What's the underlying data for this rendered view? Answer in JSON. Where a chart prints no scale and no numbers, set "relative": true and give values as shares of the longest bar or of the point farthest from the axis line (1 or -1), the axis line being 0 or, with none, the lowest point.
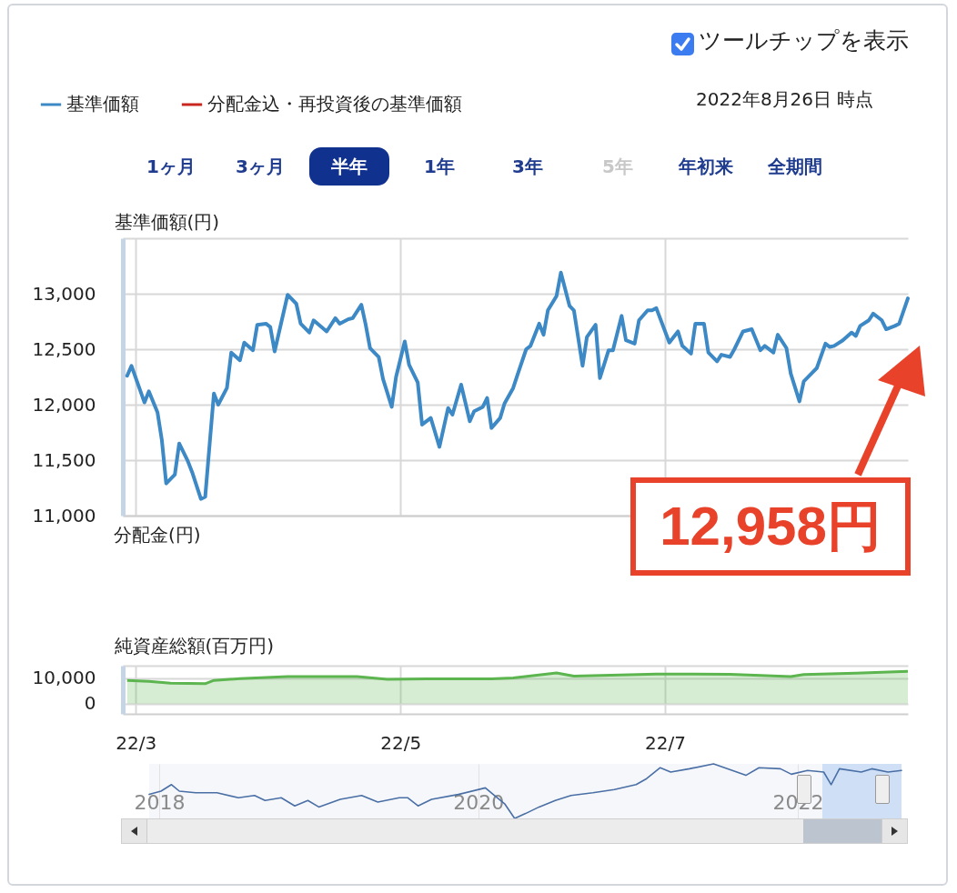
{
  "chart_data": [
    {
      "type": "line",
      "ylabel": "基準価額(円)",
      "x": [
        "2022-02-27",
        "2022-02-28",
        "2022-03-03",
        "2022-03-04",
        "2022-03-06",
        "2022-03-07",
        "2022-03-08",
        "2022-03-10",
        "2022-03-11",
        "2022-03-13",
        "2022-03-14",
        "2022-03-16",
        "2022-03-17",
        "2022-03-19",
        "2022-03-20",
        "2022-03-22",
        "2022-03-23",
        "2022-03-25",
        "2022-03-26",
        "2022-03-28",
        "2022-03-29",
        "2022-03-31",
        "2022-04-01",
        "2022-04-02",
        "2022-04-05",
        "2022-04-07",
        "2022-04-08",
        "2022-04-10",
        "2022-04-11",
        "2022-04-14",
        "2022-04-16",
        "2022-04-17",
        "2022-04-19",
        "2022-04-20",
        "2022-04-22",
        "2022-04-23",
        "2022-04-24",
        "2022-04-26",
        "2022-04-27",
        "2022-04-29",
        "2022-04-30",
        "2022-05-02",
        "2022-05-03",
        "2022-05-05",
        "2022-05-06",
        "2022-05-08",
        "2022-05-09",
        "2022-05-10",
        "2022-05-12",
        "2022-05-13",
        "2022-05-15",
        "2022-05-17",
        "2022-05-18",
        "2022-05-20",
        "2022-05-21",
        "2022-05-22",
        "2022-05-24",
        "2022-05-25",
        "2022-05-27",
        "2022-05-28",
        "2022-05-30",
        "2022-05-31",
        "2022-06-02",
        "2022-06-03",
        "2022-06-04",
        "2022-06-06",
        "2022-06-07",
        "2022-06-09",
        "2022-06-10",
        "2022-06-12",
        "2022-06-13",
        "2022-06-15",
        "2022-06-16",
        "2022-06-18",
        "2022-06-19",
        "2022-06-21",
        "2022-06-22",
        "2022-06-24",
        "2022-06-25",
        "2022-06-27",
        "2022-06-28",
        "2022-06-29",
        "2022-07-02",
        "2022-07-04",
        "2022-07-05",
        "2022-07-07",
        "2022-07-08",
        "2022-07-10",
        "2022-07-11",
        "2022-07-13",
        "2022-07-14",
        "2022-07-16",
        "2022-07-17",
        "2022-07-19",
        "2022-07-21",
        "2022-07-23",
        "2022-07-24",
        "2022-07-26",
        "2022-07-27",
        "2022-07-29",
        "2022-07-30",
        "2022-08-01",
        "2022-08-02",
        "2022-08-04",
        "2022-08-05",
        "2022-08-07",
        "2022-08-08",
        "2022-08-09",
        "2022-08-11",
        "2022-08-13",
        "2022-08-14",
        "2022-08-15",
        "2022-08-17",
        "2022-08-18",
        "2022-08-20",
        "2022-08-21",
        "2022-08-23",
        "2022-08-24",
        "2022-08-26"
      ],
      "series": [
        {
          "name": "基準価額",
          "color": "#3d89c5",
          "values": [
            12260,
            12350,
            12020,
            12120,
            11930,
            11680,
            11290,
            11370,
            11650,
            11490,
            11390,
            11150,
            11170,
            12100,
            12000,
            12150,
            12470,
            12400,
            12560,
            12490,
            12720,
            12730,
            12700,
            12480,
            12990,
            12910,
            12730,
            12650,
            12760,
            12660,
            12780,
            12730,
            12770,
            12780,
            12900,
            12720,
            12510,
            12430,
            12230,
            11980,
            12250,
            12570,
            12360,
            12200,
            11820,
            11880,
            11750,
            11620,
            11970,
            11910,
            12180,
            11850,
            11940,
            11980,
            12060,
            11790,
            11880,
            12010,
            12150,
            12270,
            12500,
            12530,
            12730,
            12630,
            12850,
            12980,
            13190,
            12890,
            12850,
            12350,
            12610,
            12720,
            12240,
            12490,
            12490,
            12800,
            12580,
            12550,
            12760,
            12850,
            12850,
            12870,
            12560,
            12660,
            12530,
            12460,
            12730,
            12730,
            12470,
            12390,
            12450,
            12430,
            12500,
            12660,
            12680,
            12490,
            12530,
            12470,
            12630,
            12510,
            12280,
            12030,
            12210,
            12290,
            12330,
            12550,
            12520,
            12530,
            12580,
            12650,
            12620,
            12710,
            12760,
            12820,
            12760,
            12680,
            12710,
            12730,
            12958
          ]
        },
        {
          "name": "分配金込・再投資後の基準価額",
          "color": "#c9261f",
          "values": [
            null,
            null,
            null,
            null,
            null,
            null,
            null,
            null,
            null,
            null,
            null,
            null,
            null,
            null,
            null,
            null,
            null,
            null,
            null,
            null,
            null,
            null,
            null,
            null,
            null,
            null,
            null,
            null,
            null,
            null,
            null,
            null,
            null,
            null,
            null,
            null,
            null,
            null,
            null,
            null,
            null,
            null,
            null,
            null,
            null,
            null,
            null,
            null,
            null,
            null,
            null,
            null,
            null,
            null,
            null,
            null,
            null,
            null,
            null,
            null,
            null,
            null,
            null,
            null,
            null,
            null,
            null,
            null,
            null,
            null,
            null,
            null,
            null,
            null,
            null,
            null,
            null,
            null,
            null,
            null,
            null,
            null,
            null,
            null,
            null,
            null,
            null,
            null,
            null,
            null,
            null,
            null,
            null,
            null,
            null,
            null,
            null,
            null,
            null,
            null,
            null,
            null,
            null,
            null,
            null,
            null,
            null,
            null,
            null,
            null,
            null,
            null,
            null,
            null,
            null,
            null,
            null,
            null,
            null
          ]
        }
      ],
      "xlim": [
        "2022-02-26",
        "2022-08-26"
      ],
      "xticks": [
        {
          "value": "2022-03-01",
          "label": null
        },
        {
          "value": "2022-05-01",
          "label": null
        },
        {
          "value": "2022-07-01",
          "label": null
        }
      ],
      "ylim": [
        11000,
        13500
      ],
      "yticks": [
        {
          "value": 11000,
          "label": "11,000"
        },
        {
          "value": 11500,
          "label": "11,500"
        },
        {
          "value": 12000,
          "label": "12,000"
        },
        {
          "value": 12500,
          "label": "12,500"
        },
        {
          "value": 13000,
          "label": "13,000"
        },
        {
          "value": 13500,
          "label": null
        }
      ],
      "grid": true,
      "legend": "top left",
      "tick_labels": "y",
      "annotations": [
        "ツールチップを表示",
        "2022年8月26日 時点",
        "1ヶ月",
        "3ヶ月",
        "半年",
        "1年",
        "3年",
        "5年",
        "年初来",
        "全期間",
        "12,958円"
      ]
    },
    {
      "type": "other",
      "ylabel": "分配金(円)"
    },
    {
      "type": "area",
      "ylabel": "純資産総額(百万円)",
      "x": [
        "2022-02-27",
        "2022-03-04",
        "2022-03-09",
        "2022-03-17",
        "2022-03-19",
        "2022-03-25",
        "2022-04-05",
        "2022-04-21",
        "2022-04-28",
        "2022-05-07",
        "2022-05-22",
        "2022-05-27",
        "2022-06-06",
        "2022-06-10",
        "2022-06-29",
        "2022-07-16",
        "2022-07-30",
        "2022-08-02",
        "2022-08-14",
        "2022-08-26"
      ],
      "series": [
        {
          "color": "#5cb54f",
          "values": [
            9200,
            8800,
            8100,
            7900,
            9200,
            9900,
            10700,
            10700,
            9600,
            9800,
            9800,
            10200,
            12100,
            10900,
            11700,
            11600,
            10700,
            11500,
            12000,
            12800
          ]
        }
      ],
      "xlim": [
        "2022-02-26",
        "2022-08-26"
      ],
      "xticks": [
        {
          "value": "2022-03-01",
          "label": "22/3"
        },
        {
          "value": "2022-05-01",
          "label": "22/5"
        },
        {
          "value": "2022-07-01",
          "label": "22/7"
        }
      ],
      "ylim": [
        -4000,
        15000
      ],
      "yticks": [
        0,
        {
          "value": 10000,
          "label": "10,000"
        },
        {
          "value": 15000,
          "label": null
        }
      ],
      "grid": true
    },
    {
      "type": "line",
      "relative": true,
      "x": [
        "2017-12-09",
        "2018-01-05",
        "2018-01-29",
        "2018-02-16",
        "2018-03-25",
        "2018-05-13",
        "2018-07-01",
        "2018-08-07",
        "2018-08-31",
        "2018-10-07",
        "2018-11-07",
        "2018-12-07",
        "2019-01-01",
        "2019-02-19",
        "2019-04-09",
        "2019-05-16",
        "2019-07-04",
        "2019-07-23",
        "2019-08-16",
        "2019-09-16",
        "2019-11-16",
        "2020-01-17",
        "2020-02-04",
        "2020-03-01",
        "2020-03-24",
        "2020-04-18",
        "2020-05-19",
        "2020-06-25",
        "2020-07-31",
        "2020-09-19",
        "2020-11-07",
        "2020-12-27",
        "2021-01-20",
        "2021-02-20",
        "2021-03-16",
        "2021-04-28",
        "2021-06-22",
        "2021-08-04",
        "2021-09-04",
        "2021-10-04",
        "2021-11-22",
        "2021-12-17",
        "2022-01-23",
        "2022-03-01",
        "2022-03-18",
        "2022-04-06",
        "2022-05-26",
        "2022-06-19",
        "2022-07-26",
        "2022-08-26"
      ],
      "series": [
        {
          "color": "#4a6fa5",
          "values": [
            0.44,
            0.5,
            0.62,
            0.5,
            0.47,
            0.47,
            0.38,
            0.42,
            0.33,
            0.38,
            0.23,
            0.33,
            0.21,
            0.35,
            0.42,
            0.3,
            0.38,
            0.38,
            0.23,
            0.35,
            0.44,
            0.56,
            0.44,
            0.27,
            0,
            0.09,
            0.21,
            0.33,
            0.42,
            0.47,
            0.53,
            0.62,
            0.73,
            0.93,
            0.85,
            0.91,
            1,
            0.88,
            0.79,
            0.93,
            0.91,
            0.81,
            0.88,
            0.85,
            0.62,
            0.91,
            0.85,
            0.91,
            0.85,
            0.88
          ]
        }
      ],
      "xlim": [
        "2017-12-09",
        "2022-08-26"
      ],
      "xticks": [
        {
          "value": "2018-01-01",
          "label": "2018"
        },
        {
          "value": "2020-01-01",
          "label": "2020"
        },
        {
          "value": "2022-01-01",
          "label": "2022"
        }
      ],
      "grid": "x",
      "tick_labels": "x",
      "bands": [
        {
          "axis": "x",
          "from": "2022-02-26",
          "to": "2022-08-26",
          "color": "#cfe0f6"
        }
      ]
    }
  ]
}
